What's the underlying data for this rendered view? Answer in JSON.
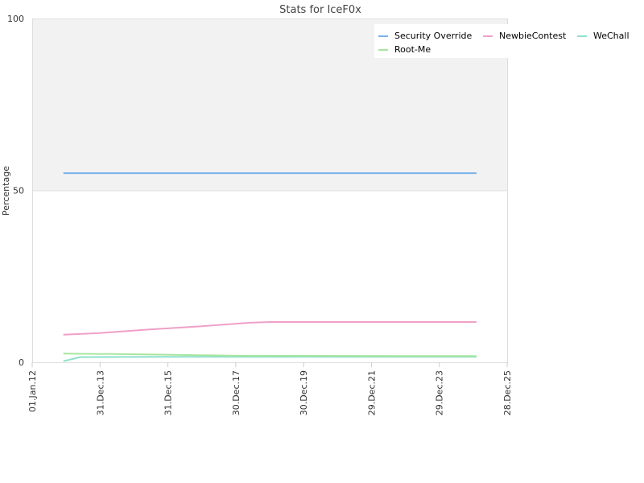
{
  "chart_data": {
    "type": "line",
    "title": "Stats for IceF0x",
    "ylabel": "Percentage",
    "xlabel": "",
    "ylim": [
      0,
      100
    ],
    "xlim": [
      "2012-01-01",
      "2025-12-28"
    ],
    "y_ticks": [
      "0",
      "50",
      "100"
    ],
    "y_tick_values": [
      0,
      50,
      100
    ],
    "x_ticks": [
      "01.Jan.12",
      "31.Dec.13",
      "31.Dec.15",
      "30.Dec.17",
      "30.Dec.19",
      "29.Dec.21",
      "29.Dec.23",
      "28.Dec.25"
    ],
    "x_tick_dates": [
      "2012-01-01",
      "2013-12-31",
      "2015-12-31",
      "2017-12-30",
      "2019-12-30",
      "2021-12-29",
      "2023-12-29",
      "2025-12-28"
    ],
    "band_above": 50,
    "legend_position": "top-right",
    "series": [
      {
        "name": "Security Override",
        "color": "#7ab2ea",
        "points": [
          [
            "2012-12-01",
            55
          ],
          [
            "2025-02-01",
            55
          ]
        ]
      },
      {
        "name": "NewbieContest",
        "color": "#f0a0c8",
        "points": [
          [
            "2012-12-01",
            8
          ],
          [
            "2013-12-31",
            8.5
          ],
          [
            "2015-06-01",
            9.5
          ],
          [
            "2017-01-01",
            10.5
          ],
          [
            "2018-06-01",
            11.5
          ],
          [
            "2019-01-01",
            11.7
          ],
          [
            "2025-02-01",
            11.7
          ]
        ]
      },
      {
        "name": "WeChall",
        "color": "#8ee0cc",
        "points": [
          [
            "2012-12-01",
            0.3
          ],
          [
            "2013-06-01",
            1.5
          ],
          [
            "2016-01-01",
            1.6
          ],
          [
            "2025-02-01",
            1.6
          ]
        ]
      },
      {
        "name": "Root-Me",
        "color": "#a8e6a0",
        "points": [
          [
            "2012-12-01",
            2.5
          ],
          [
            "2014-06-01",
            2.4
          ],
          [
            "2016-01-01",
            2.2
          ],
          [
            "2018-01-01",
            1.9
          ],
          [
            "2025-02-01",
            1.8
          ]
        ]
      }
    ]
  }
}
